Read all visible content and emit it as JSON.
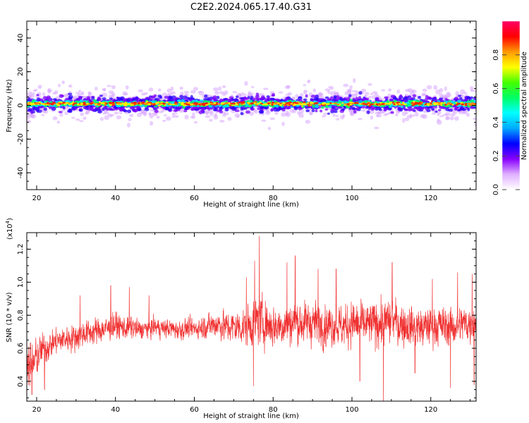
{
  "title": "C2E2.2024.065.17.40.G31",
  "chart_data": [
    {
      "type": "heatmap",
      "xlabel": "Height of straight line (km)",
      "ylabel": "Frequency (Hz)",
      "xlim": [
        17.5,
        131.5
      ],
      "ylim": [
        -50,
        50
      ],
      "xticks": [
        20,
        40,
        60,
        80,
        100,
        120
      ],
      "yticks": [
        -40,
        -20,
        0,
        20,
        40
      ],
      "ytick_labels": [
        "-40",
        "-20",
        "0",
        "20",
        "40"
      ],
      "grid": false,
      "colorbar": {
        "label": "Normalized spectral amplitude",
        "range": [
          0.0,
          1.0
        ],
        "ticks": [
          0.0,
          0.2,
          0.4,
          0.6,
          0.8
        ],
        "tick_labels": [
          "0.0",
          "0.2",
          "0.4",
          "0.6",
          "0.8"
        ],
        "colormap": [
          "#ffffff",
          "#e0b0ff",
          "#8800ff",
          "#0000ff",
          "#00aaff",
          "#00ffff",
          "#00ff66",
          "#44ff00",
          "#ffff00",
          "#ff9900",
          "#ff0000",
          "#ff0066"
        ]
      },
      "band_center_hz": 1,
      "band_halfwidth_hz": 3,
      "spread_halfwidth_hz": 9
    },
    {
      "type": "line",
      "xlabel": "Height of straight line (km)",
      "ylabel": "SNR (10 * v/v)",
      "scale_label": "(x10",
      "scale_exponent": "4",
      "scale_suffix": ")",
      "xlim": [
        17.5,
        131.5
      ],
      "ylim": [
        0.28,
        1.3
      ],
      "xticks": [
        20,
        40,
        60,
        80,
        100,
        120
      ],
      "yticks": [
        0.4,
        0.6,
        0.8,
        1.0,
        1.2
      ],
      "ytick_labels": [
        "0.4",
        "0.6",
        "0.8",
        "1.0",
        "1.2"
      ],
      "grid": false,
      "series": [
        {
          "color": "#f03030",
          "x": [
            17.5,
            18,
            19,
            20,
            22,
            24,
            26,
            28,
            30,
            32,
            34,
            36,
            38,
            40,
            42,
            44,
            46,
            48,
            50,
            52,
            54,
            56,
            58,
            60,
            62,
            64,
            66,
            68,
            70,
            72,
            74,
            76,
            78,
            80,
            82,
            84,
            86,
            88,
            90,
            92,
            94,
            96,
            98,
            100,
            102,
            104,
            106,
            108,
            110,
            112,
            114,
            116,
            118,
            120,
            122,
            124,
            126,
            128,
            130,
            131.5
          ],
          "mean": [
            0.58,
            0.52,
            0.5,
            0.55,
            0.6,
            0.63,
            0.65,
            0.66,
            0.67,
            0.69,
            0.7,
            0.71,
            0.72,
            0.74,
            0.72,
            0.73,
            0.71,
            0.72,
            0.73,
            0.72,
            0.72,
            0.71,
            0.72,
            0.72,
            0.73,
            0.74,
            0.75,
            0.73,
            0.73,
            0.73,
            0.74,
            0.77,
            0.76,
            0.73,
            0.74,
            0.75,
            0.76,
            0.75,
            0.76,
            0.75,
            0.74,
            0.74,
            0.73,
            0.75,
            0.74,
            0.74,
            0.76,
            0.74,
            0.77,
            0.75,
            0.74,
            0.73,
            0.72,
            0.74,
            0.74,
            0.73,
            0.73,
            0.75,
            0.75,
            0.76
          ],
          "spread": [
            0.1,
            0.12,
            0.12,
            0.1,
            0.08,
            0.07,
            0.07,
            0.07,
            0.07,
            0.07,
            0.07,
            0.07,
            0.06,
            0.07,
            0.06,
            0.06,
            0.05,
            0.05,
            0.05,
            0.05,
            0.05,
            0.05,
            0.05,
            0.05,
            0.06,
            0.07,
            0.08,
            0.08,
            0.09,
            0.09,
            0.11,
            0.13,
            0.12,
            0.11,
            0.11,
            0.11,
            0.12,
            0.11,
            0.12,
            0.11,
            0.11,
            0.1,
            0.11,
            0.12,
            0.12,
            0.11,
            0.12,
            0.12,
            0.12,
            0.11,
            0.11,
            0.1,
            0.1,
            0.1,
            0.1,
            0.1,
            0.1,
            0.1,
            0.1,
            0.1
          ],
          "peaks": [
            [
              76.5,
              1.28
            ],
            [
              75.3,
              1.13
            ],
            [
              85.6,
              1.16
            ],
            [
              108,
              1.12
            ],
            [
              110.2,
              1.12
            ],
            [
              83.5,
              1.12
            ],
            [
              91.4,
              1.08
            ],
            [
              73.2,
              1.03
            ],
            [
              96,
              1.08
            ],
            [
              126.8,
              1.06
            ],
            [
              120.4,
              1.02
            ],
            [
              130.5,
              1.05
            ],
            [
              43.5,
              0.97
            ],
            [
              38.8,
              0.98
            ],
            [
              48.5,
              0.92
            ],
            [
              31,
              0.92
            ]
          ],
          "dips": [
            [
              18.8,
              0.32
            ],
            [
              108,
              0.28
            ],
            [
              75,
              0.37
            ],
            [
              125,
              0.36
            ],
            [
              131,
              0.38
            ],
            [
              102,
              0.4
            ],
            [
              116,
              0.45
            ],
            [
              22,
              0.35
            ]
          ]
        }
      ]
    }
  ]
}
